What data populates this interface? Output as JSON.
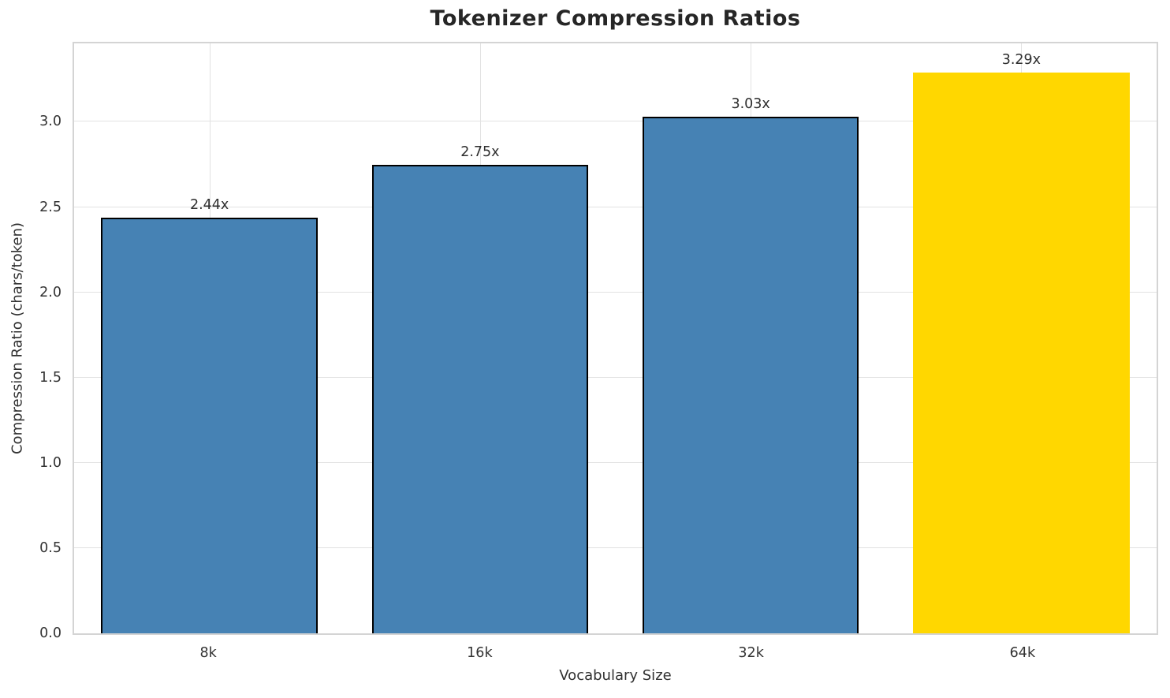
{
  "chart_data": {
    "type": "bar",
    "title": "Tokenizer Compression Ratios",
    "xlabel": "Vocabulary Size",
    "ylabel": "Compression Ratio (chars/token)",
    "categories": [
      "8k",
      "16k",
      "32k",
      "64k"
    ],
    "values": [
      2.44,
      2.75,
      3.03,
      3.29
    ],
    "bar_labels": [
      "2.44x",
      "2.75x",
      "3.03x",
      "3.29x"
    ],
    "bar_colors": [
      "#4682B4",
      "#4682B4",
      "#4682B4",
      "#FFD700"
    ],
    "bar_edge_colors": [
      "#000000",
      "#000000",
      "#000000",
      "none"
    ],
    "base_color": "#4682B4",
    "highlight_color": "#FFD700",
    "edge_color": "#000000",
    "grid_color": "#e2e2e2",
    "spine_color": "#d4d4d4",
    "ylim": [
      0,
      3.46
    ],
    "yticks": [
      0,
      0.5,
      1,
      1.5,
      2,
      2.5,
      3
    ],
    "ytick_labels": [
      "0.0",
      "0.5",
      "1.0",
      "1.5",
      "2.0",
      "2.5",
      "3.0"
    ],
    "bar_width_fraction": 0.8,
    "grid": "on",
    "legend": "none"
  }
}
